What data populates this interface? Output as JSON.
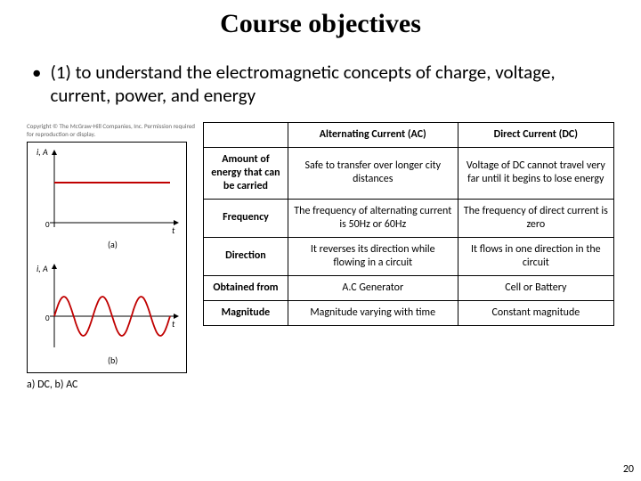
{
  "title": "Course objectives",
  "bullet": "(1) to understand the electromagnetic concepts of charge, voltage, current, power, and energy",
  "figure": {
    "copyright": "Copyright © The McGraw-Hill Companies, Inc. Permission required for reproduction or display.",
    "caption": "a) DC, b) AC",
    "axis_label": "i, A",
    "time_label": "t",
    "panel_a_label": "(a)",
    "panel_b_label": "(b)",
    "dc": {
      "type": "line",
      "color": "#c00000",
      "line_width": 2,
      "y_value": 0.6,
      "xlim": [
        0,
        1
      ],
      "ylim": [
        0,
        1
      ]
    },
    "ac": {
      "type": "sine",
      "color": "#c00000",
      "line_width": 1.8,
      "amplitude": 22,
      "cycles": 3,
      "xlim": [
        0,
        1
      ],
      "ylim": [
        -1,
        1
      ]
    },
    "axis_color": "#000000",
    "background": "#ffffff"
  },
  "table": {
    "columns": [
      "",
      "Alternating Current (AC)",
      "Direct Current (DC)"
    ],
    "rows": [
      {
        "head": "Amount of energy that can be carried",
        "ac": "Safe to transfer over longer city distances",
        "dc": "Voltage of DC cannot travel very far until it begins to lose energy"
      },
      {
        "head": "Frequency",
        "ac": "The frequency of alternating current is 50Hz or 60Hz",
        "dc": "The frequency of direct current is zero"
      },
      {
        "head": "Direction",
        "ac": "It reverses its direction while flowing in a circuit",
        "dc": "It flows in one direction in the circuit"
      },
      {
        "head": "Obtained from",
        "ac": "A.C Generator",
        "dc": "Cell or Battery"
      },
      {
        "head": "Magnitude",
        "ac": "Magnitude varying with time",
        "dc": "Constant magnitude"
      }
    ]
  },
  "page_number": "20"
}
